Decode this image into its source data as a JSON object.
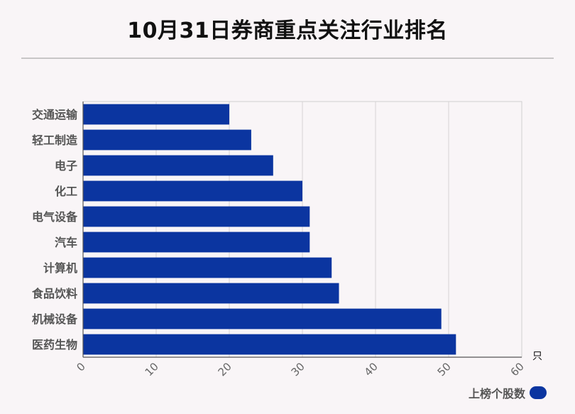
{
  "title": "10月31日券商重点关注行业排名",
  "chart_data": {
    "type": "bar",
    "orientation": "horizontal",
    "categories": [
      "交通运输",
      "轻工制造",
      "电子",
      "化工",
      "电气设备",
      "汽车",
      "计算机",
      "食品饮料",
      "机械设备",
      "医药生物"
    ],
    "series": [
      {
        "name": "上榜个股数",
        "values": [
          20,
          23,
          26,
          30,
          31,
          31,
          34,
          35,
          49,
          51
        ]
      }
    ],
    "xlim": [
      0,
      60
    ],
    "xticks": [
      "0",
      "10",
      "20",
      "30",
      "40",
      "50",
      "60"
    ],
    "xunit": "只",
    "grid": true,
    "legend_position": "bottom-right",
    "bar_color": "#0b35a0"
  }
}
